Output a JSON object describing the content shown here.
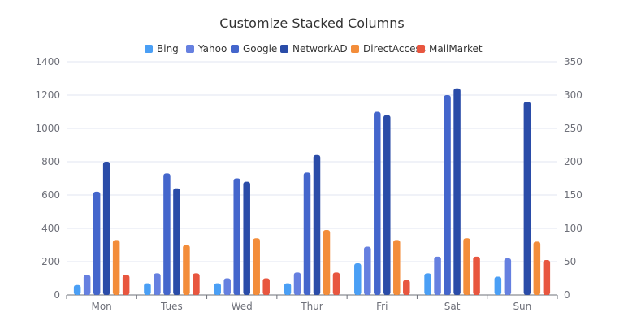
{
  "chart_data": {
    "type": "bar",
    "title": "Customize Stacked Columns",
    "categories": [
      "Mon",
      "Tues",
      "Wed",
      "Thur",
      "Fri",
      "Sat",
      "Sun"
    ],
    "ylim": [
      0,
      1400
    ],
    "yticks": [
      0,
      200,
      400,
      600,
      800,
      1000,
      1200,
      1400
    ],
    "ylim_right": [
      0,
      350
    ],
    "yticks_right": [
      0,
      50,
      100,
      150,
      200,
      250,
      300,
      350
    ],
    "grid": true,
    "legend_position": "top",
    "series": [
      {
        "name": "Bing",
        "color": "#4a9ff5",
        "values": [
          60,
          70,
          70,
          70,
          190,
          130,
          110
        ]
      },
      {
        "name": "Yahoo",
        "color": "#6680e0",
        "values": [
          120,
          130,
          100,
          135,
          290,
          230,
          220
        ]
      },
      {
        "name": "Google",
        "color": "#4466cc",
        "values": [
          620,
          730,
          700,
          735,
          1100,
          1200,
          0
        ]
      },
      {
        "name": "NetworkAD",
        "color": "#2a4ca8",
        "values": [
          800,
          640,
          680,
          840,
          1080,
          1240,
          1160
        ]
      },
      {
        "name": "DirectAccess",
        "color": "#f38d3a",
        "values": [
          330,
          300,
          340,
          390,
          330,
          340,
          320
        ]
      },
      {
        "name": "MailMarket",
        "color": "#e8563f",
        "values": [
          120,
          130,
          100,
          135,
          90,
          230,
          210
        ]
      }
    ]
  }
}
